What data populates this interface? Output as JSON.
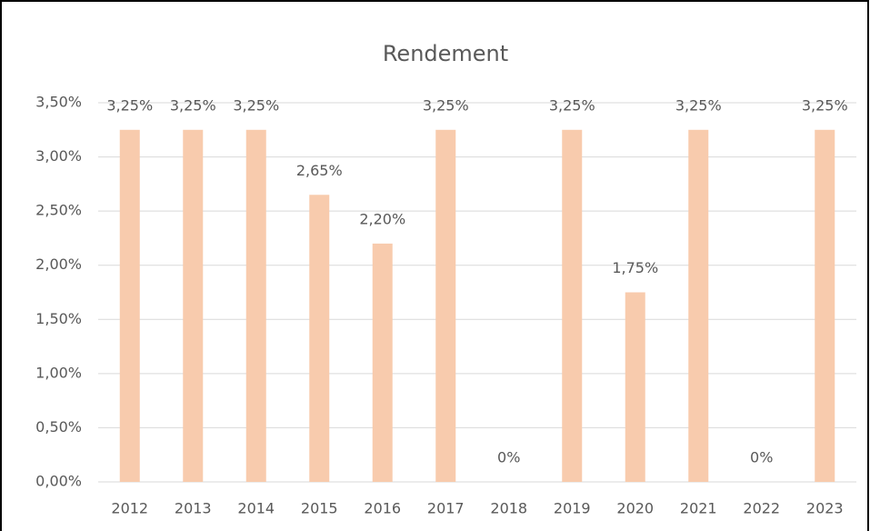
{
  "chart_data": {
    "type": "bar",
    "title": "Rendement",
    "categories": [
      "2012",
      "2013",
      "2014",
      "2015",
      "2016",
      "2017",
      "2018",
      "2019",
      "2020",
      "2021",
      "2022",
      "2023"
    ],
    "values": [
      3.25,
      3.25,
      3.25,
      2.65,
      2.2,
      3.25,
      0,
      3.25,
      1.75,
      3.25,
      0,
      3.25
    ],
    "value_labels": [
      "3,25%",
      "3,25%",
      "3,25%",
      "2,65%",
      "2,20%",
      "3,25%",
      "0%",
      "3,25%",
      "1,75%",
      "3,25%",
      "0%",
      "3,25%"
    ],
    "color": "#f8cbad",
    "ylim": [
      0,
      3.5
    ],
    "yticks": [
      {
        "value": 0,
        "label": "0,00%"
      },
      {
        "value": 0.5,
        "label": "0,50%"
      },
      {
        "value": 1,
        "label": "1,00%"
      },
      {
        "value": 1.5,
        "label": "1,50%"
      },
      {
        "value": 2,
        "label": "2,00%"
      },
      {
        "value": 2.5,
        "label": "2,50%"
      },
      {
        "value": 3,
        "label": "3,00%"
      },
      {
        "value": 3.5,
        "label": "3,50%"
      }
    ],
    "grid": true
  }
}
